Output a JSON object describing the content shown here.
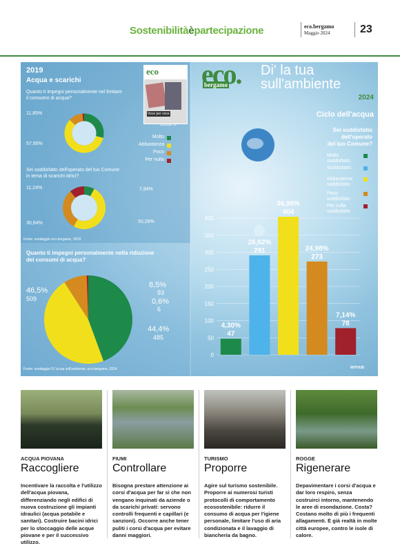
{
  "header": {
    "section_a": "Sostenibilità",
    "section_b": "è",
    "section_c": "partecipazione",
    "publication": "eco.bergamo",
    "date": "Maggio 2024",
    "page_number": "23"
  },
  "infographic": {
    "logo_eco": "eco.",
    "logo_bergamo": "bergamo",
    "title_line1": "Di' la tua",
    "title_line2": "sull'ambiente",
    "year_2024": "2024",
    "subtitle_2024": "Ciclo dell'acqua",
    "question_2024": [
      "Sei soddisfatto",
      "dell'operato",
      "del tuo Comune?"
    ],
    "year_2019": "2019",
    "subtitle_2019": "Acqua e scarichi",
    "q1": [
      "Quanto ti impegni personalmente nel limitare",
      "il consumo di acqua?"
    ],
    "q2": [
      "Sei soddisfatto dell'operato del tuo Comune",
      "in tema di scarichi idrici?"
    ],
    "source_2019": "Fonte: sondaggio eco.bergamo, 2019",
    "q3": [
      "Quanto ti impegni personalmente nella riduzione",
      "dei consumi di acqua?"
    ],
    "source_2024": "Fonte: sondaggio Di' la tua sull'ambiente, eco.bergamo, 2024",
    "credit": "WITHUB",
    "thumb_text": "Voce per voce",
    "thumb_logo": "eco"
  },
  "legend_2019": [
    {
      "label": "Molto",
      "color": "#1e8a4a"
    },
    {
      "label": "Abbastanza",
      "color": "#f2df1c"
    },
    {
      "label": "Poco",
      "color": "#d48a1e"
    },
    {
      "label": "Per nulla",
      "color": "#a0212c"
    }
  ],
  "legend_2024": [
    {
      "label": "Molto soddisfatto",
      "color": "#1e8a4a"
    },
    {
      "label": "Soddisfatto",
      "color": "#4eb3ea"
    },
    {
      "label": "Abbastanza soddisfatto",
      "color": "#f2df1c"
    },
    {
      "label": "Poco soddisfatto",
      "color": "#d48a1e"
    },
    {
      "label": "Per nulla soddisfatto",
      "color": "#a0212c"
    }
  ],
  "chart_data": [
    {
      "type": "pie",
      "title": "Quanto ti impegni personalmente nel limitare il consumo di acqua?",
      "categories": [
        "Molto",
        "Abbastanza",
        "Poco",
        "Per nulla"
      ],
      "values": [
        28.82,
        57.95,
        11.85,
        1.38
      ],
      "value_labels": [
        "28,82%",
        "57,95%",
        "11,85%",
        "1,38%"
      ]
    },
    {
      "type": "pie",
      "title": "Sei soddisfatto dell'operato del tuo Comune in tema di scarichi idrici?",
      "categories": [
        "Molto",
        "Abbastanza",
        "Poco",
        "Per nulla"
      ],
      "values": [
        7.84,
        50.28,
        30.64,
        11.24
      ],
      "value_labels": [
        "7,84%",
        "50,28%",
        "30,64%",
        "11,24%"
      ]
    },
    {
      "type": "pie",
      "title": "Quanto ti impegni personalmente nella riduzione dei consumi di acqua?",
      "categories": [
        "Molto",
        "Abbastanza",
        "Poco",
        "Per nulla"
      ],
      "values": [
        44.4,
        46.5,
        8.5,
        0.6
      ],
      "counts": [
        485,
        509,
        93,
        6
      ],
      "value_labels": [
        "44,4%",
        "46,5%",
        "8,5%",
        "0,6%"
      ]
    },
    {
      "type": "bar",
      "title": "Sei soddisfatto dell'operato del tuo Comune?",
      "categories": [
        "Molto soddisfatto",
        "Soddisfatto",
        "Abbastanza soddisfatto",
        "Poco soddisfatto",
        "Per nulla soddisfatto"
      ],
      "values": [
        47,
        291,
        404,
        273,
        78
      ],
      "percent_labels": [
        "4,30%",
        "26,62%",
        "36,96%",
        "24,98%",
        "7,14%"
      ],
      "ylim": [
        0,
        400
      ],
      "yticks": [
        "0",
        "50",
        "100",
        "150",
        "200",
        "250",
        "300",
        "350",
        "400"
      ],
      "grid": true
    }
  ],
  "columns": [
    {
      "kicker": "ACQUA PIOVANA",
      "headline": "Raccogliere",
      "body": "Incentivare la raccolta e l'utilizzo dell'acqua piovana, differenziando negli edifici di nuova costruzione gli impianti idraulici (acqua potabile e sanitari). Costruire bacini idrici per lo stoccaggio delle acque piovane e per il successivo utilizzo.",
      "photo_color": "#6a7a52"
    },
    {
      "kicker": "FIUMI",
      "headline": "Controllare",
      "body": "Bisogna prestare attenzione ai corsi d'acqua per far sì che non vengano inquinati da aziende o da scarichi privati: servono controlli frequenti e capillari (e sanzioni). Occorre anche tener puliti i corsi d'acqua per evitare danni maggiori.",
      "photo_color": "#5b8a58"
    },
    {
      "kicker": "TURISMO",
      "headline": "Proporre",
      "body": "Agire sul turismo sostenibile. Proporre ai numerosi turisti protocolli di comportamento ecosostenibile: ridurre il consumo di acqua per l'igiene personale, limitare l'uso di aria condizionata e il lavaggio di biancheria da bagno.",
      "photo_color": "#8a8a86"
    },
    {
      "kicker": "ROGGE",
      "headline": "Rigenerare",
      "body": "Depavimentare i corsi d'acqua e dar loro respiro, senza costruirci intorno, mantenendo le aree di esondazione. Costa? Costano molto di più i frequenti allagamenti. È già realtà in molte città europee, contro le isole di calore.",
      "photo_color": "#4d7a3a"
    }
  ]
}
